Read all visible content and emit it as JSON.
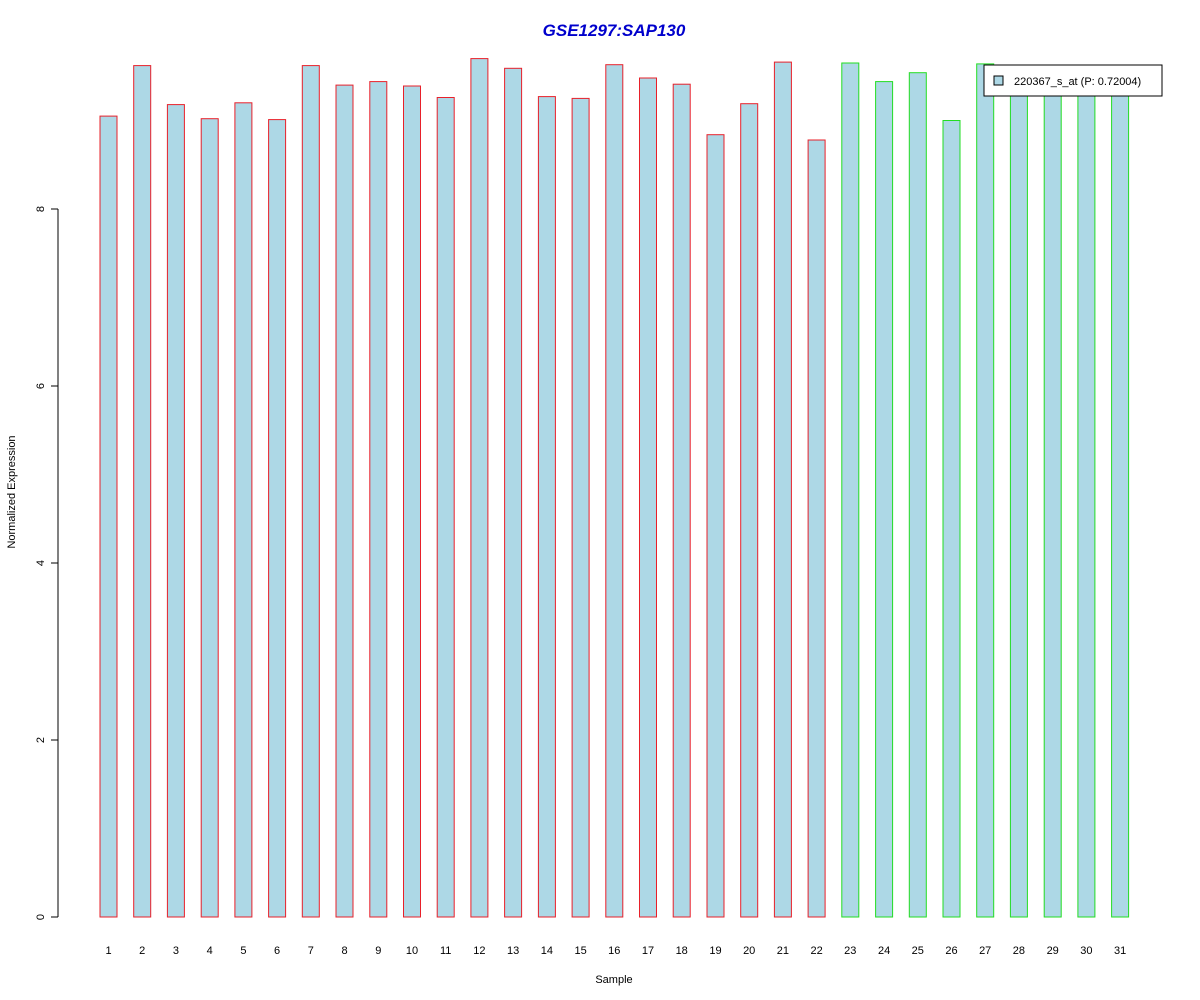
{
  "chart_data": {
    "type": "bar",
    "title": "GSE1297:SAP130",
    "xlabel": "Sample",
    "ylabel": "Normalized Expression",
    "ylim": [
      0,
      9.8
    ],
    "yticks": [
      0,
      2,
      4,
      6,
      8
    ],
    "categories": [
      "1",
      "2",
      "3",
      "4",
      "5",
      "6",
      "7",
      "8",
      "9",
      "10",
      "11",
      "12",
      "13",
      "14",
      "15",
      "16",
      "17",
      "18",
      "19",
      "20",
      "21",
      "22",
      "23",
      "24",
      "25",
      "26",
      "27",
      "28",
      "29",
      "30",
      "31"
    ],
    "values": [
      9.05,
      9.62,
      9.18,
      9.02,
      9.2,
      9.01,
      9.62,
      9.4,
      9.44,
      9.39,
      9.26,
      9.7,
      9.59,
      9.27,
      9.25,
      9.63,
      9.48,
      9.41,
      8.84,
      9.19,
      9.66,
      8.78,
      9.65,
      9.44,
      9.54,
      9.0,
      9.64,
      9.38,
      9.48,
      9.29,
      9.37
    ],
    "groups": [
      "red",
      "red",
      "red",
      "red",
      "red",
      "red",
      "red",
      "red",
      "red",
      "red",
      "red",
      "red",
      "red",
      "red",
      "red",
      "red",
      "red",
      "red",
      "red",
      "red",
      "red",
      "red",
      "green",
      "green",
      "green",
      "green",
      "green",
      "green",
      "green",
      "green",
      "green"
    ],
    "legend": {
      "label": "220367_s_at (P: 0.72004)",
      "placement": "top-right"
    },
    "grid": false,
    "colors": {
      "title": "#0000cc",
      "bar_fill": "#add8e6",
      "border_red": "#e8202a",
      "border_green": "#22dd22",
      "axis": "#000000"
    }
  }
}
